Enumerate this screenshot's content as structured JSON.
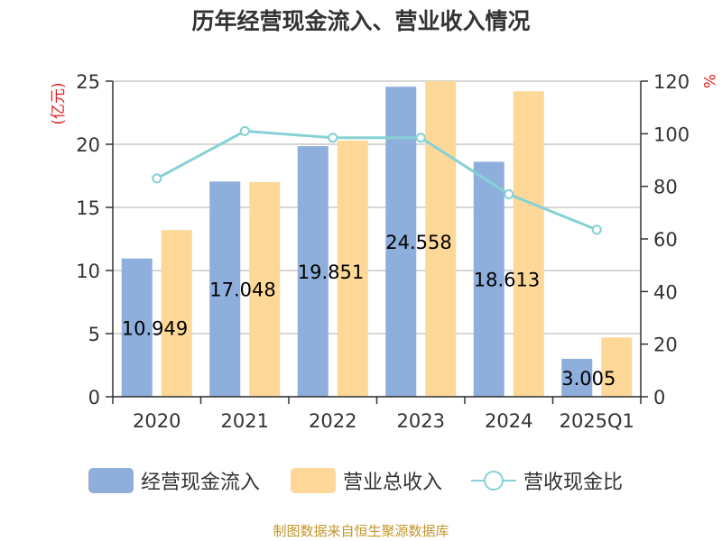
{
  "chart_data": {
    "type": "bar",
    "title": "历年经营现金流入、营业收入情况",
    "categories": [
      "2020",
      "2021",
      "2022",
      "2023",
      "2024",
      "2025Q1"
    ],
    "y_left": {
      "unit": "(亿元)",
      "ylim": [
        0,
        25
      ],
      "ticks": [
        "0",
        "5",
        "10",
        "15",
        "20",
        "25"
      ]
    },
    "y_right": {
      "unit": "%",
      "ylim": [
        0,
        120
      ],
      "ticks": [
        "0",
        "20",
        "40",
        "60",
        "80",
        "100",
        "120"
      ]
    },
    "series": [
      {
        "name": "经营现金流入",
        "axis": "left",
        "kind": "bar",
        "values": [
          10.949,
          17.048,
          19.851,
          24.558,
          18.613,
          3.005
        ],
        "labels": [
          "10.949",
          "17.048",
          "19.851",
          "24.558",
          "18.613",
          "3.005"
        ]
      },
      {
        "name": "营业总收入",
        "axis": "left",
        "kind": "bar",
        "values": [
          13.2,
          17.0,
          20.3,
          25.0,
          24.2,
          4.7
        ]
      },
      {
        "name": "营收现金比",
        "axis": "right",
        "kind": "line",
        "values": [
          83,
          101,
          98.5,
          98.5,
          77,
          63.5
        ]
      }
    ],
    "grid": true,
    "legend_position": "bottom"
  },
  "colors": {
    "bar1": "#8eaedb",
    "bar2": "#fdd898",
    "line": "#86d1d6",
    "unit": "#e02020",
    "source": "#c4962a"
  },
  "source_note": "制图数据来自恒生聚源数据库"
}
